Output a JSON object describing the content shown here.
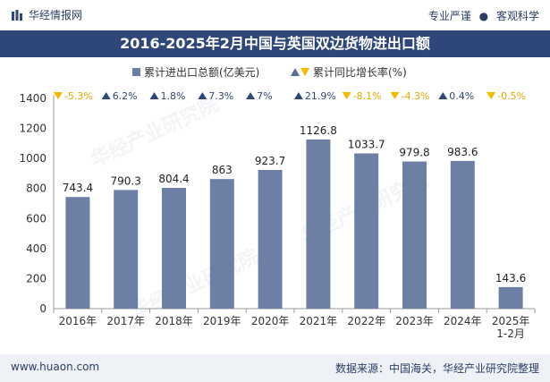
{
  "header": {
    "brand": "华经情报网",
    "tagline_left": "专业严谨",
    "tagline_dot": "●",
    "tagline_right": "客观科学"
  },
  "footer": {
    "website": "www.huaon.com",
    "source": "数据来源：中国海关，华经产业研究院整理"
  },
  "watermark": "华经产业研究院",
  "colors": {
    "bar": "#6e7fa6",
    "title_bg": "#2f4778",
    "up": "#2f4778",
    "down": "#f5b800"
  },
  "chart_data": {
    "type": "bar",
    "title": "2016-2025年2月中国与英国双边货物进出口额",
    "categories": [
      "2016年",
      "2017年",
      "2018年",
      "2019年",
      "2020年",
      "2021年",
      "2022年",
      "2023年",
      "2024年",
      "2025年1-2月"
    ],
    "category_lines": [
      [
        "2016年"
      ],
      [
        "2017年"
      ],
      [
        "2018年"
      ],
      [
        "2019年"
      ],
      [
        "2020年"
      ],
      [
        "2021年"
      ],
      [
        "2022年"
      ],
      [
        "2023年"
      ],
      [
        "2024年"
      ],
      [
        "2025年",
        "1-2月"
      ]
    ],
    "series": [
      {
        "name": "累计进出口总额(亿美元)",
        "values": [
          743.4,
          790.3,
          804.4,
          863,
          923.7,
          1126.8,
          1033.7,
          979.8,
          983.6,
          143.6
        ]
      },
      {
        "name": "累计同比增长率(%)",
        "values": [
          -5.3,
          6.2,
          1.8,
          7.3,
          7,
          21.9,
          -8.1,
          -4.3,
          0.4,
          -0.5
        ]
      }
    ],
    "value_labels": [
      "743.4",
      "790.3",
      "804.4",
      "863",
      "923.7",
      "1126.8",
      "1033.7",
      "979.8",
      "983.6",
      "143.6"
    ],
    "growth_labels": [
      "-5.3%",
      "6.2%",
      "1.8%",
      "7.3%",
      "7%",
      "21.9%",
      "-8.1%",
      "-4.3%",
      "0.4%",
      "-0.5%"
    ],
    "ylim": [
      0,
      1400
    ],
    "yticks": [
      0,
      200,
      400,
      600,
      800,
      1000,
      1200,
      1400
    ],
    "legend_position": "top-center",
    "grid": false
  }
}
